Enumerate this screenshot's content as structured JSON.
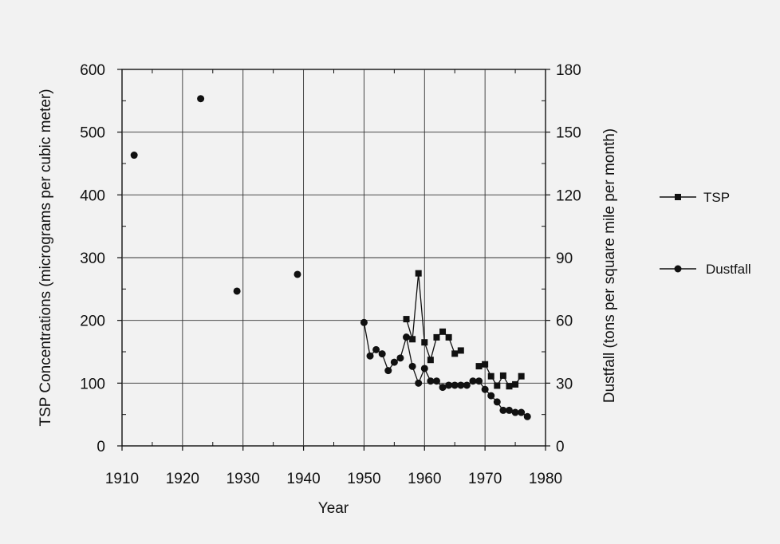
{
  "chart_data": {
    "type": "scatter",
    "xlabel": "Year",
    "ylabel_left": "TSP Concentrations (micrograms per cubic meter)",
    "ylabel_right": "Dustfall (tons per square mile per month)",
    "xlim": [
      1910,
      1980
    ],
    "ylim_left": [
      0,
      600
    ],
    "ylim_right": [
      0,
      180
    ],
    "xticks": [
      "1910",
      "1920",
      "1930",
      "1940",
      "1950",
      "1960",
      "1970",
      "1980"
    ],
    "yticks_left": [
      "0",
      "100",
      "200",
      "300",
      "400",
      "500",
      "600"
    ],
    "yticks_right": [
      "0",
      "30",
      "60",
      "90",
      "120",
      "150",
      "180"
    ],
    "grid": true,
    "legend_position": "right",
    "series": [
      {
        "name": "TSP",
        "marker": "square",
        "axis": "left",
        "x": [
          1957,
          1958,
          1959,
          1960,
          1961,
          1962,
          1963,
          1964,
          1965,
          1966,
          1969,
          1970,
          1971,
          1972,
          1973,
          1974,
          1975,
          1976
        ],
        "y": [
          202,
          170,
          275,
          165,
          137,
          173,
          182,
          173,
          147,
          152,
          127,
          130,
          111,
          96,
          112,
          95,
          98,
          111
        ]
      },
      {
        "name": "Dustfall",
        "marker": "circle",
        "axis": "right",
        "x": [
          1912,
          1923,
          1929,
          1939,
          1950,
          1951,
          1952,
          1953,
          1954,
          1955,
          1956,
          1957,
          1958,
          1959,
          1960,
          1961,
          1962,
          1963,
          1964,
          1965,
          1966,
          1967,
          1968,
          1969,
          1970,
          1971,
          1972,
          1973,
          1974,
          1975,
          1976,
          1977
        ],
        "y": [
          139,
          166,
          74,
          82,
          59,
          43,
          46,
          44,
          36,
          40,
          42,
          52,
          38,
          30,
          37,
          31,
          31,
          28,
          29,
          29,
          29,
          29,
          31,
          31,
          27,
          24,
          21,
          17,
          17,
          16,
          16,
          14
        ]
      }
    ]
  }
}
